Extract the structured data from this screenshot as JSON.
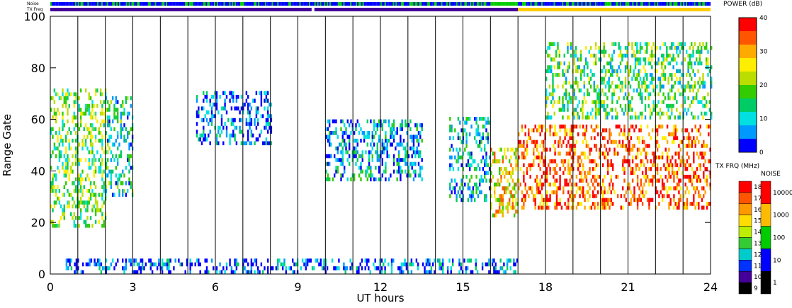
{
  "chart_data": {
    "type": "heatmap",
    "title": "",
    "xlabel": "UT hours",
    "ylabel": "Range Gate",
    "xlim": [
      0,
      24
    ],
    "ylim": [
      0,
      100
    ],
    "x_ticks": [
      0,
      3,
      6,
      9,
      12,
      15,
      18,
      21,
      24
    ],
    "y_ticks": [
      0,
      20,
      40,
      60,
      80,
      100
    ],
    "hour_gridlines": [
      1,
      2,
      3,
      4,
      5,
      6,
      7,
      8,
      9,
      10,
      11,
      12,
      13,
      14,
      15,
      16,
      17,
      18,
      19,
      20,
      21,
      22,
      23
    ],
    "grid": "vertical lines at each hour",
    "top_strips": {
      "noise_label": "Noise",
      "txfreq_label": "TX Freq"
    },
    "power_colorbar": {
      "title": "POWER (dB)",
      "ticks": [
        "0",
        "10",
        "20",
        "30",
        "40"
      ],
      "colors": [
        "#0000ff",
        "#0099ff",
        "#00e0e0",
        "#00cc66",
        "#33cc00",
        "#bbdd00",
        "#ffee00",
        "#ffaa00",
        "#ff5500",
        "#ff0000"
      ]
    },
    "txfreq_colorbar": {
      "title": "TX FRQ (MHz)",
      "labels": [
        "18",
        "17",
        "16",
        "15",
        "14",
        "13",
        "12",
        "11",
        "10",
        "9"
      ],
      "colors": [
        "#ff0000",
        "#ff5500",
        "#ff9900",
        "#ffdd00",
        "#bbee00",
        "#33cc33",
        "#00cccc",
        "#0033ff",
        "#440099",
        "#000000"
      ]
    },
    "noise_colorbar": {
      "title": "NOISE",
      "labels": [
        "10000",
        "1000",
        "100",
        "10",
        "1"
      ],
      "colors": [
        "#ff0000",
        "#ffbb00",
        "#00cc00",
        "#0000ff",
        "#000000"
      ]
    },
    "echo_regions": [
      {
        "t0": 0.0,
        "t1": 2.0,
        "g0": 18,
        "g1": 72,
        "p": 0.45
      },
      {
        "t0": 2.0,
        "t1": 3.0,
        "g0": 30,
        "g1": 68,
        "p": 0.3
      },
      {
        "t0": 5.3,
        "t1": 8.0,
        "g0": 50,
        "g1": 70,
        "p": 0.1
      },
      {
        "t0": 10.0,
        "t1": 13.5,
        "g0": 36,
        "g1": 60,
        "p": 0.2
      },
      {
        "t0": 14.5,
        "t1": 16.0,
        "g0": 28,
        "g1": 60,
        "p": 0.25
      },
      {
        "t0": 16.0,
        "t1": 17.0,
        "g0": 22,
        "g1": 48,
        "p": 0.65
      },
      {
        "t0": 17.0,
        "t1": 24.0,
        "g0": 25,
        "g1": 58,
        "p": 0.85
      },
      {
        "t0": 18.0,
        "t1": 24.0,
        "g0": 60,
        "g1": 90,
        "p": 0.4
      },
      {
        "t0": 0.5,
        "t1": 17.0,
        "g0": 0,
        "g1": 6,
        "p": 0.1
      }
    ]
  }
}
